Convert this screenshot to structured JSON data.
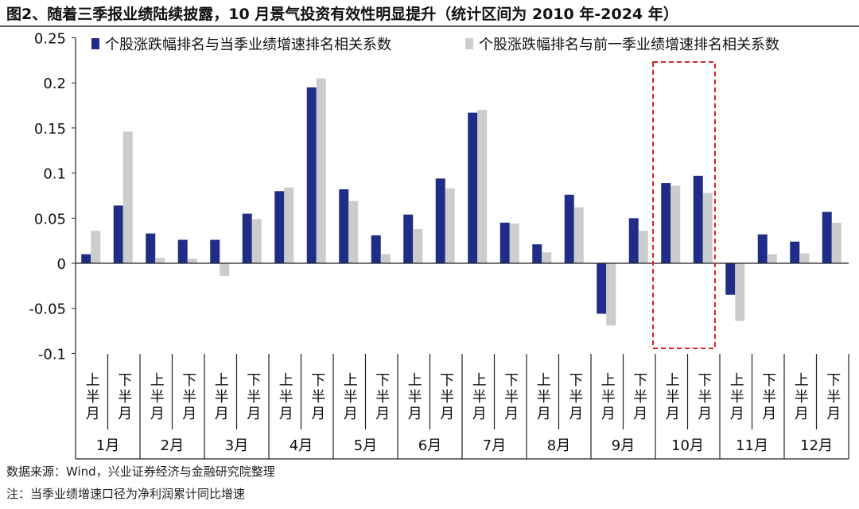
{
  "title": "图2、随着三季报业绩陆续披露，10 月景气投资有效性明显提升（统计区间为 2010 年-2024 年）",
  "source": "数据来源：Wind，兴业证券经济与金融研究院整理",
  "note": "注：当季业绩增速口径为净利润累计同比增速",
  "chart_data": {
    "type": "bar",
    "ylim": [
      -0.1,
      0.25
    ],
    "yticks": [
      "0.25",
      "0.2",
      "0.15",
      "0.1",
      "0.05",
      "0",
      "-0.05",
      "-0.1"
    ],
    "ytick_values": [
      0.25,
      0.2,
      0.15,
      0.1,
      0.05,
      0,
      -0.05,
      -0.1
    ],
    "grid": false,
    "legend_position": "top",
    "months": [
      "1月",
      "2月",
      "3月",
      "4月",
      "5月",
      "6月",
      "7月",
      "8月",
      "9月",
      "10月",
      "11月",
      "12月"
    ],
    "halves": [
      "上半月",
      "下半月"
    ],
    "highlight": "10月",
    "series": [
      {
        "name": "个股涨跌幅排名与当季业绩增速排名相关系数",
        "color": "#1f2d86",
        "values": [
          0.01,
          0.064,
          0.033,
          0.026,
          0.026,
          0.055,
          0.08,
          0.195,
          0.082,
          0.031,
          0.054,
          0.094,
          0.167,
          0.045,
          0.021,
          0.076,
          -0.056,
          0.05,
          0.089,
          0.097,
          -0.035,
          0.032,
          0.024,
          0.057
        ]
      },
      {
        "name": "个股涨跌幅排名与前一季业绩增速排名相关系数",
        "color": "#cccccc",
        "values": [
          0.036,
          0.146,
          0.006,
          0.005,
          -0.014,
          0.049,
          0.084,
          0.205,
          0.069,
          0.01,
          0.038,
          0.083,
          0.17,
          0.044,
          0.012,
          0.062,
          -0.069,
          0.036,
          0.086,
          0.078,
          -0.064,
          0.01,
          0.011,
          0.045
        ]
      }
    ],
    "highlight_color": "#e02020"
  }
}
